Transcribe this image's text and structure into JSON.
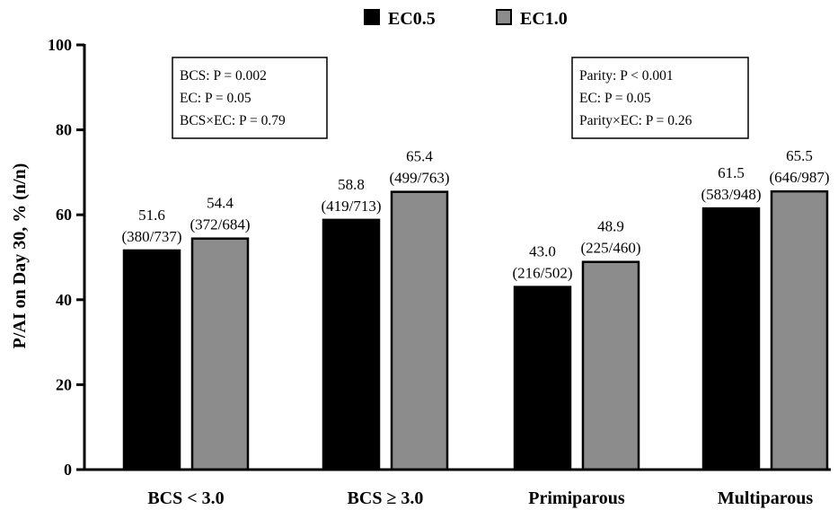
{
  "chart_data": {
    "type": "bar",
    "ylabel": "P/AI on Day 30, % (n/n)",
    "ylim": [
      0,
      100
    ],
    "yticks": [
      "0",
      "20",
      "40",
      "60",
      "80",
      "100"
    ],
    "categories": [
      "BCS < 3.0",
      "BCS ≥ 3.0",
      "Primiparous",
      "Multiparous"
    ],
    "series": [
      {
        "name": "EC0.5",
        "color": "#000000",
        "values": [
          51.6,
          58.8,
          43.0,
          61.5
        ],
        "value_labels": [
          "51.6",
          "58.8",
          "43.0",
          "61.5"
        ],
        "count_labels": [
          "(380/737)",
          "(419/713)",
          "(216/502)",
          "(583/948)"
        ]
      },
      {
        "name": "EC1.0",
        "color": "#8c8c8c",
        "values": [
          54.4,
          65.4,
          48.9,
          65.5
        ],
        "value_labels": [
          "54.4",
          "65.4",
          "48.9",
          "65.5"
        ],
        "count_labels": [
          "(372/684)",
          "(499/763)",
          "(225/460)",
          "(646/987)"
        ]
      }
    ],
    "legend_position": "top-center",
    "grid": false,
    "annotations": [
      {
        "lines": [
          "BCS: P = 0.002",
          "EC: P = 0.05",
          "BCS×EC: P =  0.79"
        ]
      },
      {
        "lines": [
          "Parity: P < 0.001",
          "EC: P = 0.05",
          "Parity×EC: P =  0.26"
        ]
      }
    ]
  }
}
